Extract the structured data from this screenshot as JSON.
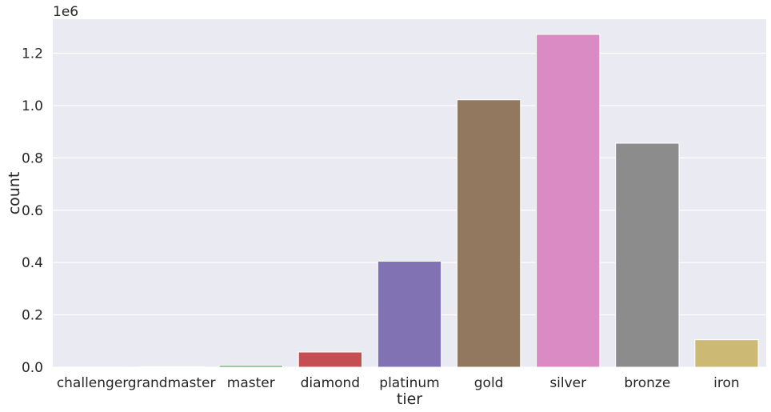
{
  "chart_data": {
    "type": "bar",
    "categories": [
      "challenger",
      "grandmaster",
      "master",
      "diamond",
      "platinum",
      "gold",
      "silver",
      "bronze",
      "iron"
    ],
    "values": [
      500,
      1500,
      7000,
      58000,
      405000,
      1022000,
      1272000,
      856000,
      105000
    ],
    "colors": [
      "#4c72b0",
      "#dd8452",
      "#55a868",
      "#c44e52",
      "#8172b3",
      "#937860",
      "#da8bc3",
      "#8c8c8c",
      "#ccb974"
    ],
    "xlabel": "tier",
    "ylabel": "count",
    "ylim": [
      0,
      1330000
    ],
    "yticks": [
      0,
      200000,
      400000,
      600000,
      800000,
      1000000,
      1200000
    ],
    "ytick_labels": [
      "0.0",
      "0.2",
      "0.4",
      "0.6",
      "0.8",
      "1.0",
      "1.2"
    ],
    "y_offset_label": "1e6",
    "grid": true,
    "background": "#eaeaf2"
  }
}
